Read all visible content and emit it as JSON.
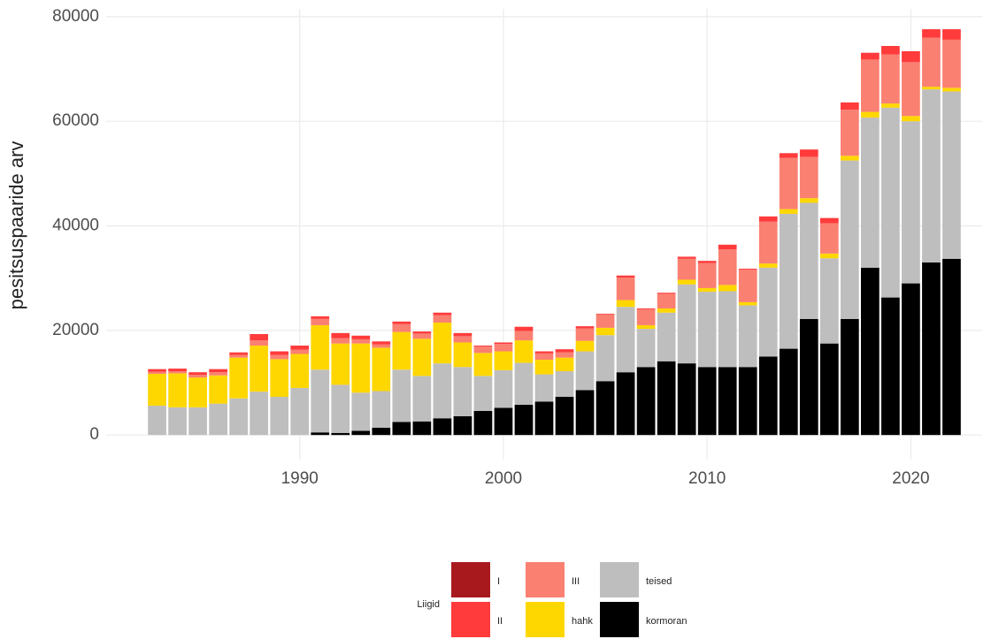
{
  "chart_data": {
    "type": "stacked_bar",
    "y_label": "pesitsuspaaride arv",
    "legend_title": "Liigid",
    "x": [
      1983,
      1984,
      1985,
      1986,
      1987,
      1988,
      1989,
      1990,
      1991,
      1992,
      1993,
      1994,
      1995,
      1996,
      1997,
      1998,
      1999,
      2000,
      2001,
      2002,
      2003,
      2004,
      2005,
      2006,
      2007,
      2008,
      2009,
      2010,
      2011,
      2012,
      2013,
      2014,
      2015,
      2016,
      2017,
      2018,
      2019,
      2020,
      2021,
      2022
    ],
    "series": [
      {
        "name": "I",
        "color": "#a8191e",
        "values": [
          0,
          0,
          0,
          0,
          0,
          0,
          0,
          0,
          0,
          0,
          0,
          0,
          0,
          0,
          0,
          0,
          0,
          0,
          0,
          0,
          0,
          0,
          0,
          0,
          0,
          0,
          0,
          0,
          0,
          0,
          0,
          0,
          0,
          0,
          0,
          0,
          0,
          0,
          0,
          0
        ]
      },
      {
        "name": "II",
        "color": "#ff3b3b",
        "values": [
          500,
          500,
          500,
          600,
          500,
          1200,
          700,
          800,
          500,
          1000,
          700,
          600,
          500,
          400,
          500,
          600,
          200,
          300,
          800,
          400,
          600,
          400,
          100,
          400,
          200,
          200,
          400,
          400,
          900,
          200,
          1000,
          900,
          1400,
          1000,
          1400,
          1300,
          1600,
          2100,
          1600,
          2000
        ]
      },
      {
        "name": "III",
        "color": "#fa8072",
        "values": [
          400,
          400,
          500,
          600,
          500,
          1000,
          800,
          800,
          1200,
          1000,
          800,
          600,
          1500,
          1000,
          1400,
          1200,
          1200,
          1400,
          1800,
          1200,
          1000,
          2400,
          2600,
          4300,
          3000,
          2800,
          4000,
          4800,
          6800,
          6200,
          8000,
          9800,
          7900,
          5800,
          8800,
          10000,
          9400,
          10300,
          9400,
          9200
        ]
      },
      {
        "name": "hahk",
        "color": "#ffd700",
        "values": [
          6100,
          6500,
          5700,
          5400,
          7800,
          8800,
          7200,
          6500,
          8500,
          7900,
          9400,
          8300,
          7200,
          7100,
          7800,
          4700,
          4400,
          3600,
          4300,
          2800,
          2600,
          2000,
          1400,
          1300,
          700,
          800,
          900,
          700,
          1200,
          600,
          800,
          900,
          900,
          900,
          900,
          1100,
          800,
          1000,
          500,
          700
        ]
      },
      {
        "name": "teised",
        "color": "#bebebe",
        "values": [
          5600,
          5300,
          5300,
          6000,
          7000,
          8300,
          7300,
          9000,
          12000,
          9200,
          7300,
          7000,
          10000,
          8700,
          10500,
          9400,
          6700,
          7200,
          8000,
          5200,
          4900,
          7400,
          8800,
          12500,
          7300,
          9300,
          15100,
          14400,
          14500,
          11800,
          17000,
          25800,
          22200,
          16300,
          30300,
          28700,
          36300,
          31000,
          33100,
          32000
        ]
      },
      {
        "name": "kormoran",
        "color": "#000000",
        "values": [
          0,
          0,
          0,
          0,
          0,
          0,
          0,
          0,
          500,
          400,
          800,
          1400,
          2500,
          2600,
          3200,
          3600,
          4600,
          5200,
          5800,
          6400,
          7300,
          8600,
          10300,
          12000,
          13000,
          14100,
          13700,
          13000,
          13000,
          13000,
          15000,
          16500,
          22200,
          17500,
          22200,
          32000,
          26300,
          29000,
          33000,
          33700
        ]
      }
    ],
    "xlim": [
      1980.5,
      2023.5
    ],
    "xticks": [
      1990,
      2000,
      2010,
      2020
    ],
    "ylim": [
      -4700,
      81500
    ],
    "yticks": [
      0,
      20000,
      40000,
      60000,
      80000
    ],
    "grid": true,
    "legend": "bottom"
  }
}
